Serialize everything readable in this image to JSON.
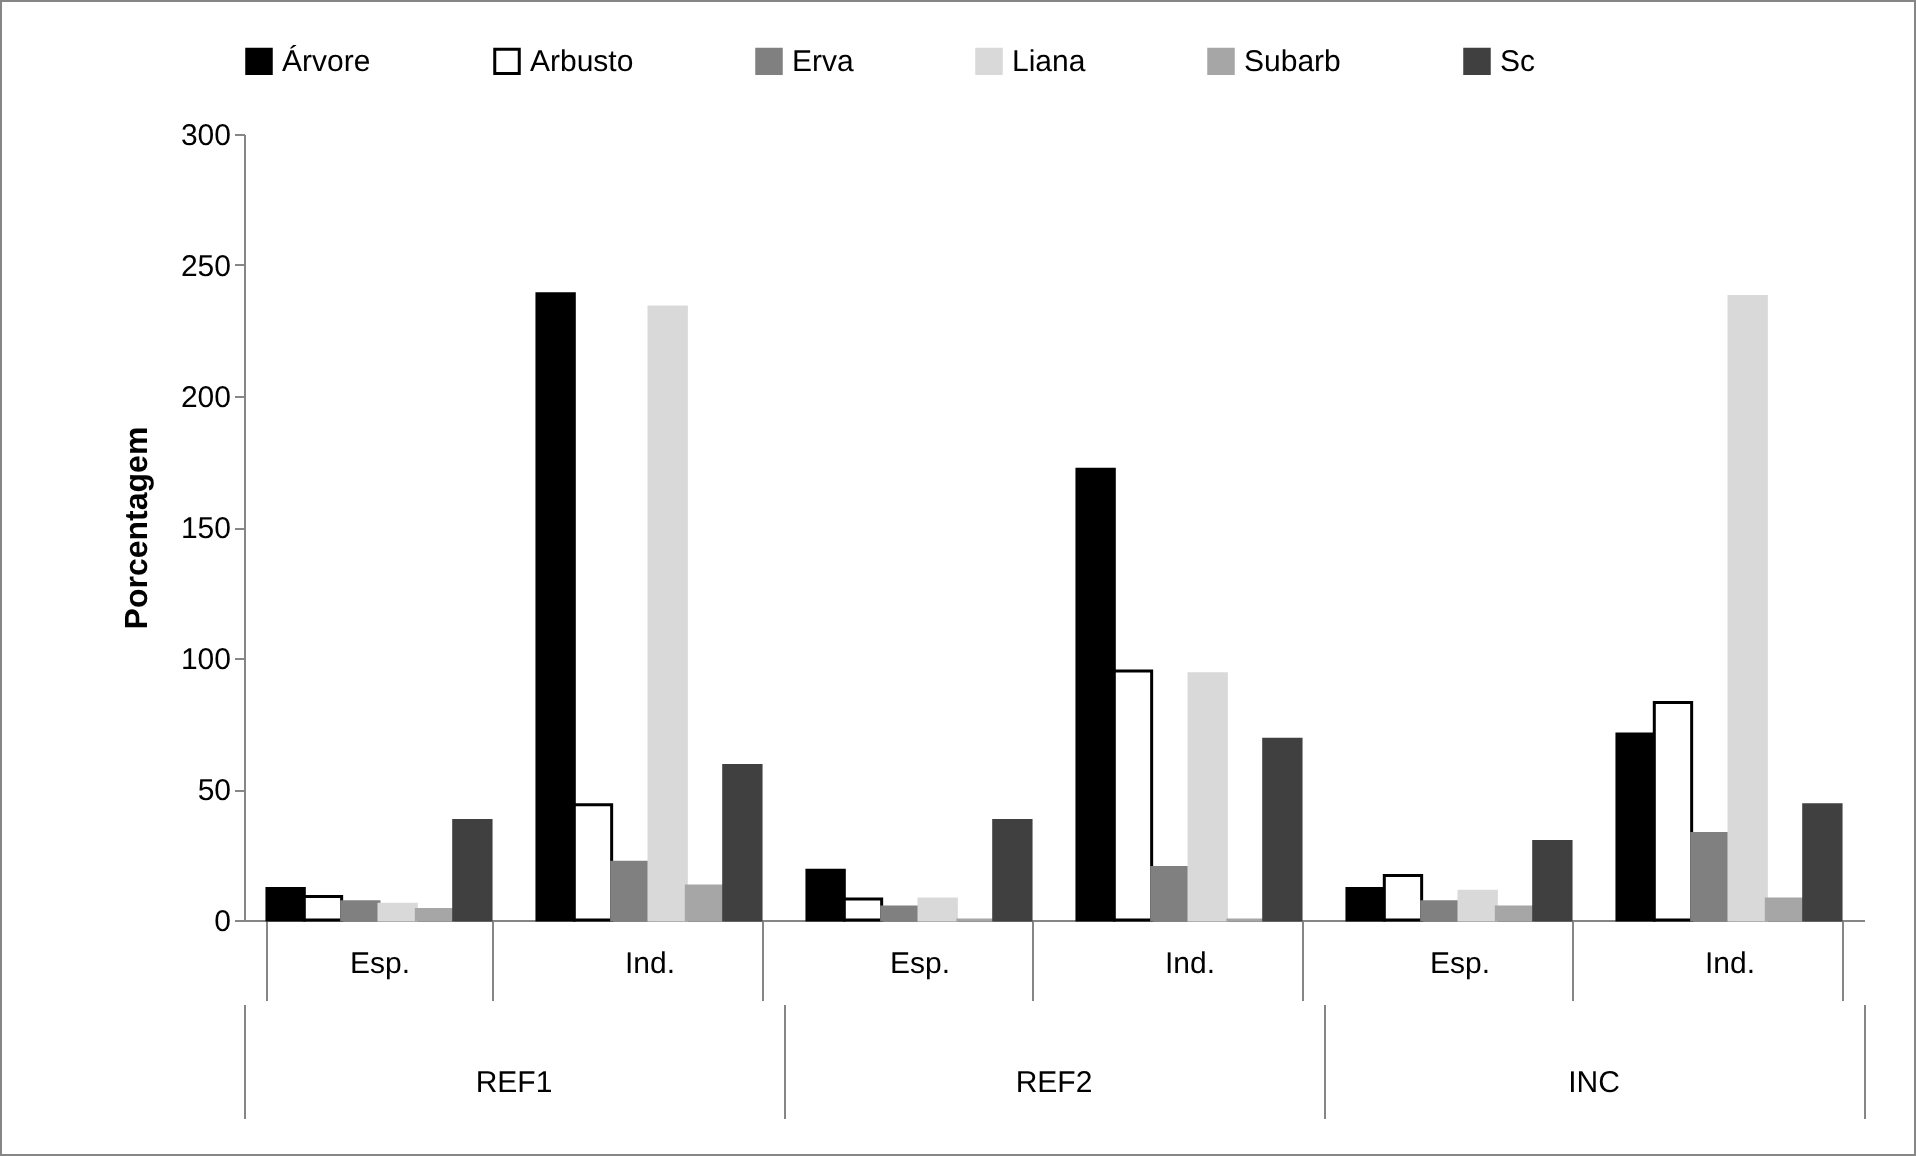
{
  "chart_data": {
    "type": "bar",
    "ylabel": "Porcentagem",
    "categories": [
      "Esp.",
      "Ind.",
      "Esp.",
      "Ind.",
      "Esp.",
      "Ind."
    ],
    "series": [
      {
        "name": "Árvore",
        "color": "#000000",
        "values": [
          12,
          239,
          19,
          172,
          12,
          71
        ]
      },
      {
        "name": "Arbusto",
        "color": "#ffffff",
        "values": [
          9,
          44,
          8,
          95,
          17,
          83
        ]
      },
      {
        "name": "Erva",
        "color": "#808080",
        "values": [
          7,
          22,
          5,
          20,
          7,
          33
        ]
      },
      {
        "name": "Liana",
        "color": "#d9d9d9",
        "values": [
          6,
          234,
          8,
          94,
          11,
          238
        ]
      },
      {
        "name": "Subarb",
        "color": "#a6a6a6",
        "values": [
          4,
          13,
          0,
          0,
          5,
          8
        ]
      },
      {
        "name": "Sc",
        "color": "#404040",
        "values": [
          38,
          59,
          38,
          69,
          30,
          44
        ]
      }
    ],
    "ylim": [
      0,
      300
    ],
    "yticks": [
      0,
      50,
      100,
      150,
      200,
      250,
      300
    ],
    "grid": false,
    "legend": "top",
    "annotations": [
      "REF1",
      "REF2",
      "INC"
    ]
  }
}
